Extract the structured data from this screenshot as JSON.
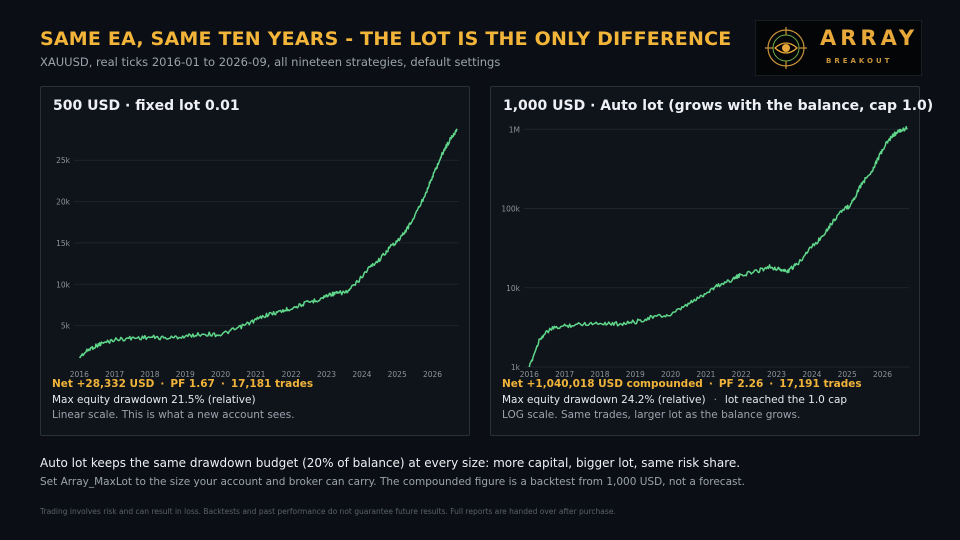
{
  "header": {
    "title": "SAME EA, SAME TEN YEARS  -  THE LOT IS THE ONLY DIFFERENCE",
    "subtitle": "XAUUSD, real ticks 2016-01 to 2026-09, all nineteen strategies, default settings"
  },
  "logo": {
    "word": "ARRAY",
    "sub": "BREAKOUT",
    "icon": "eye-target-icon"
  },
  "panels": [
    {
      "title": "500 USD  ·  fixed lot 0.01",
      "stats": {
        "net": "Net +28,332 USD",
        "pf": "PF 1.67",
        "trades": "17,181 trades",
        "sep": "·"
      },
      "drawdown": "Max equity drawdown 21.5% (relative)",
      "note": "Linear scale. This is what a new account sees."
    },
    {
      "title": "1,000 USD  ·  Auto lot (grows with the balance, cap 1.0)",
      "stats": {
        "net": "Net +1,040,018 USD compounded",
        "pf": "PF 2.26",
        "trades": "17,191 trades",
        "sep": "·"
      },
      "drawdown": "Max equity drawdown 24.2% (relative)",
      "drawdown_extra": "lot reached the 1.0 cap",
      "note": "LOG scale. Same trades, larger lot as the balance grows."
    }
  ],
  "bottom": {
    "main": "Auto lot keeps the same drawdown budget (20% of balance) at every size: more capital, bigger lot, same risk share.",
    "sub": "Set Array_MaxLot to the size your account and broker can carry. The compounded figure is a backtest from 1,000 USD, not a forecast.",
    "disclaimer": "Trading involves risk and can result in loss. Backtests and past performance do not guarantee future results. Full reports are handed over after purchase."
  },
  "colors": {
    "accent": "#f2b53a",
    "line": "#5fd68a",
    "background": "#0b0e14",
    "panel": "#0f131a"
  },
  "chart_data": [
    {
      "type": "line",
      "scale": "linear",
      "x_ticks": [
        "2016",
        "2017",
        "2018",
        "2019",
        "2020",
        "2021",
        "2022",
        "2023",
        "2024",
        "2025",
        "2026"
      ],
      "y_ticks": [
        "5k",
        "10k",
        "15k",
        "20k",
        "25k"
      ],
      "y_tick_values": [
        5000,
        10000,
        15000,
        20000,
        25000
      ],
      "ylim": [
        0,
        29500
      ],
      "xlim": [
        2015.85,
        2026.75
      ],
      "grid": true,
      "x": [
        2016.0,
        2016.3,
        2016.6,
        2017.0,
        2017.5,
        2018.0,
        2018.5,
        2019.0,
        2019.5,
        2020.0,
        2020.5,
        2020.9,
        2021.3,
        2021.7,
        2022.0,
        2022.4,
        2022.8,
        2023.1,
        2023.3,
        2023.6,
        2023.9,
        2024.2,
        2024.5,
        2024.8,
        2025.1,
        2025.4,
        2025.7,
        2025.9,
        2026.1,
        2026.3,
        2026.5,
        2026.7
      ],
      "values": [
        1200,
        2200,
        2800,
        3300,
        3500,
        3600,
        3500,
        3700,
        4000,
        3900,
        4700,
        5500,
        6300,
        6700,
        7100,
        7700,
        8200,
        8800,
        8900,
        9100,
        10400,
        12000,
        13000,
        14500,
        15600,
        17500,
        20000,
        22000,
        24000,
        26000,
        27500,
        28800
      ]
    },
    {
      "type": "line",
      "scale": "log",
      "x_ticks": [
        "2016",
        "2017",
        "2018",
        "2019",
        "2020",
        "2021",
        "2022",
        "2023",
        "2024",
        "2025",
        "2026"
      ],
      "y_ticks": [
        "1k",
        "10k",
        "100k",
        "1M"
      ],
      "y_tick_values": [
        1000,
        10000,
        100000,
        1000000
      ],
      "ylim": [
        1000,
        1200000
      ],
      "xlim": [
        2015.85,
        2026.75
      ],
      "grid": true,
      "x": [
        2016.0,
        2016.3,
        2016.6,
        2017.0,
        2017.5,
        2018.0,
        2018.5,
        2019.0,
        2019.5,
        2020.0,
        2020.5,
        2020.9,
        2021.3,
        2021.7,
        2022.0,
        2022.4,
        2022.8,
        2023.1,
        2023.3,
        2023.6,
        2023.9,
        2024.2,
        2024.5,
        2024.8,
        2025.1,
        2025.4,
        2025.7,
        2025.9,
        2026.1,
        2026.3,
        2026.5,
        2026.7
      ],
      "values": [
        1000,
        2300,
        3000,
        3300,
        3500,
        3600,
        3500,
        3700,
        4300,
        4500,
        6200,
        8000,
        10500,
        12500,
        14500,
        16000,
        18500,
        17000,
        16000,
        20000,
        30000,
        40000,
        60000,
        90000,
        110000,
        200000,
        300000,
        450000,
        650000,
        850000,
        950000,
        1040000
      ]
    }
  ]
}
